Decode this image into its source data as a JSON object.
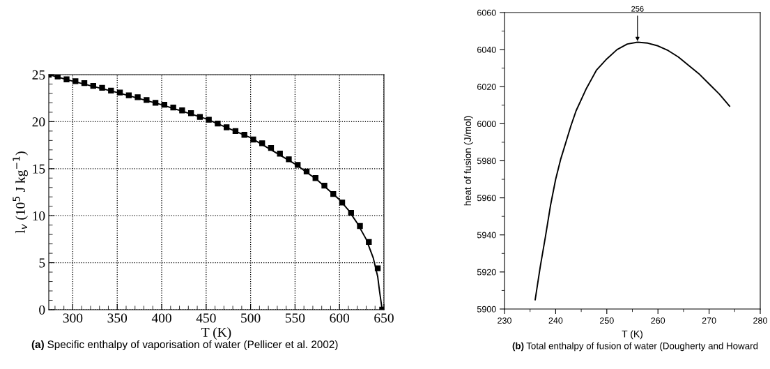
{
  "chart_data": [
    {
      "type": "line",
      "xlabel": "T (K)",
      "ylabel": "l$_{v}$ (10$^{5}$ J kg$^{−1}$)",
      "grid": true,
      "legend": false,
      "xlim": [
        273,
        650
      ],
      "ylim": [
        0,
        25
      ],
      "xticks": [
        {
          "value": 280,
          "label": null
        },
        {
          "value": 290,
          "label": null
        },
        300,
        {
          "value": 310,
          "label": null
        },
        {
          "value": 320,
          "label": null
        },
        {
          "value": 330,
          "label": null
        },
        {
          "value": 340,
          "label": null
        },
        350,
        {
          "value": 360,
          "label": null
        },
        {
          "value": 370,
          "label": null
        },
        {
          "value": 380,
          "label": null
        },
        {
          "value": 390,
          "label": null
        },
        400,
        {
          "value": 410,
          "label": null
        },
        {
          "value": 420,
          "label": null
        },
        {
          "value": 430,
          "label": null
        },
        {
          "value": 440,
          "label": null
        },
        450,
        {
          "value": 460,
          "label": null
        },
        {
          "value": 470,
          "label": null
        },
        {
          "value": 480,
          "label": null
        },
        {
          "value": 490,
          "label": null
        },
        500,
        {
          "value": 510,
          "label": null
        },
        {
          "value": 520,
          "label": null
        },
        {
          "value": 530,
          "label": null
        },
        {
          "value": 540,
          "label": null
        },
        550,
        {
          "value": 560,
          "label": null
        },
        {
          "value": 570,
          "label": null
        },
        {
          "value": 580,
          "label": null
        },
        {
          "value": 590,
          "label": null
        },
        600,
        {
          "value": 610,
          "label": null
        },
        {
          "value": 620,
          "label": null
        },
        {
          "value": 630,
          "label": null
        },
        {
          "value": 640,
          "label": null
        },
        650
      ],
      "yticks": [
        0,
        {
          "value": 1,
          "label": null
        },
        {
          "value": 2,
          "label": null
        },
        {
          "value": 3,
          "label": null
        },
        {
          "value": 4,
          "label": null
        },
        5,
        {
          "value": 6,
          "label": null
        },
        {
          "value": 7,
          "label": null
        },
        {
          "value": 8,
          "label": null
        },
        {
          "value": 9,
          "label": null
        },
        10,
        {
          "value": 11,
          "label": null
        },
        {
          "value": 12,
          "label": null
        },
        {
          "value": 13,
          "label": null
        },
        {
          "value": 14,
          "label": null
        },
        15,
        {
          "value": 16,
          "label": null
        },
        {
          "value": 17,
          "label": null
        },
        {
          "value": 18,
          "label": null
        },
        {
          "value": 19,
          "label": null
        },
        20,
        {
          "value": 21,
          "label": null
        },
        {
          "value": 22,
          "label": null
        },
        {
          "value": 23,
          "label": null
        },
        {
          "value": 24,
          "label": null
        },
        25
      ],
      "series": [
        {
          "type": "scatter",
          "marker": "square",
          "color": "#000000",
          "x": [
            273,
            283,
            293,
            303,
            313,
            323,
            333,
            343,
            353,
            363,
            373,
            383,
            393,
            403,
            413,
            423,
            433,
            443,
            453,
            463,
            473,
            483,
            493,
            503,
            513,
            523,
            533,
            543,
            553,
            563,
            573,
            583,
            593,
            603,
            613,
            623,
            633,
            643,
            648
          ],
          "values": [
            25.0,
            24.8,
            24.5,
            24.3,
            24.1,
            23.8,
            23.6,
            23.3,
            23.1,
            22.8,
            22.6,
            22.3,
            22.0,
            21.8,
            21.5,
            21.2,
            20.9,
            20.5,
            20.2,
            19.8,
            19.4,
            19.0,
            18.6,
            18.1,
            17.7,
            17.2,
            16.6,
            16.0,
            15.4,
            14.7,
            14.0,
            13.2,
            12.3,
            11.4,
            10.3,
            8.9,
            7.2,
            4.4,
            0.0
          ]
        },
        {
          "color": "#000000",
          "x": [
            273,
            300,
            350,
            400,
            450,
            500,
            550,
            575,
            600,
            610,
            620,
            630,
            638,
            643,
            645,
            648
          ],
          "values": [
            25.0,
            24.3,
            23.1,
            21.8,
            20.3,
            18.3,
            15.5,
            13.8,
            11.7,
            10.6,
            9.2,
            7.5,
            5.5,
            3.5,
            2.0,
            0.0
          ]
        }
      ],
      "annotations": [
        "(a) Specific enthalpy of vaporisation of water (Pellicer et al. 2002)"
      ]
    },
    {
      "type": "line",
      "xlabel": "T (K)",
      "ylabel": "heat of fusion (J/mol)",
      "grid": false,
      "legend": false,
      "xlim": [
        230,
        280
      ],
      "ylim": [
        5900,
        6060
      ],
      "xticks": [
        230,
        {
          "value": 235,
          "label": null
        },
        240,
        {
          "value": 245,
          "label": null
        },
        250,
        {
          "value": 255,
          "label": null
        },
        260,
        {
          "value": 265,
          "label": null
        },
        270,
        {
          "value": 275,
          "label": null
        },
        280
      ],
      "yticks": [
        5900,
        {
          "value": 5910,
          "label": null
        },
        5920,
        {
          "value": 5930,
          "label": null
        },
        5940,
        {
          "value": 5950,
          "label": null
        },
        5960,
        {
          "value": 5970,
          "label": null
        },
        5980,
        {
          "value": 5990,
          "label": null
        },
        6000,
        {
          "value": 6010,
          "label": null
        },
        6020,
        {
          "value": 6030,
          "label": null
        },
        6040,
        {
          "value": 6050,
          "label": null
        },
        6060
      ],
      "series": [
        {
          "color": "#000000",
          "x": [
            236,
            237,
            238,
            239,
            240,
            241,
            242,
            243,
            244,
            245,
            246,
            247,
            248,
            249,
            250,
            252,
            254,
            256,
            258,
            260,
            262,
            264,
            266,
            268,
            270,
            272,
            274
          ],
          "values": [
            5905,
            5923,
            5939,
            5956,
            5970,
            5981,
            5990,
            5999,
            6007,
            6013,
            6019,
            6024,
            6029,
            6032,
            6035,
            6040,
            6043,
            6044,
            6043.5,
            6042,
            6039.5,
            6036,
            6031.5,
            6027,
            6021.5,
            6016,
            6009.5
          ]
        }
      ],
      "annotations": [
        {
          "text": "256",
          "x": 256,
          "y": 6044
        },
        "(b) Total enthalpy of fusion of water (Dougherty and Howard"
      ]
    }
  ]
}
